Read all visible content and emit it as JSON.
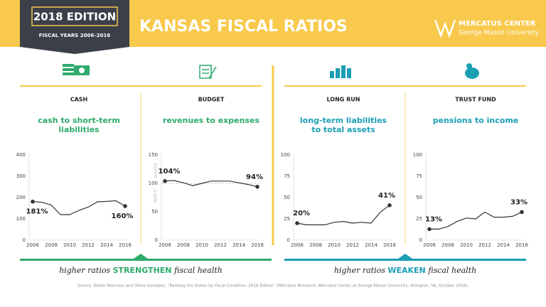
{
  "header": {
    "edition": "2018 EDITION",
    "years": "FISCAL YEARS 2006–2016",
    "title": "KANSAS FISCAL RATIOS",
    "brand": "MERCATUS CENTER",
    "brand_sub": "George Mason University"
  },
  "chart_data": [
    {
      "type": "line",
      "section": "CASH",
      "title": [
        "cash to short-term",
        "liabilities"
      ],
      "color": "#333333",
      "x": [
        2006,
        2007,
        2008,
        2009,
        2010,
        2011,
        2012,
        2013,
        2014,
        2015,
        2016
      ],
      "values": [
        181,
        178,
        165,
        120,
        120,
        140,
        155,
        180,
        182,
        185,
        160
      ],
      "value_labels": [
        "181%",
        null,
        null,
        null,
        null,
        null,
        null,
        null,
        null,
        null,
        "160%"
      ],
      "xlim": [
        2006,
        2016
      ],
      "xticks": [
        2006,
        2008,
        2010,
        2012,
        2014,
        2016
      ],
      "ylim": [
        0,
        400
      ],
      "yticks": [
        0,
        100,
        200,
        300,
        400
      ]
    },
    {
      "type": "line",
      "section": "BUDGET",
      "title": [
        "revenues to expenses"
      ],
      "color": "#333333",
      "x": [
        2006,
        2007,
        2008,
        2009,
        2010,
        2011,
        2012,
        2013,
        2014,
        2015,
        2016
      ],
      "values": [
        104,
        105,
        101,
        96,
        100,
        104,
        104,
        104,
        101,
        98,
        94
      ],
      "value_labels": [
        "104%",
        null,
        null,
        null,
        null,
        null,
        null,
        null,
        null,
        null,
        "94%"
      ],
      "reference_line": 100,
      "annotations": [
        "surplus",
        "deficit"
      ],
      "xlim": [
        2006,
        2016
      ],
      "xticks": [
        2006,
        2008,
        2010,
        2012,
        2014,
        2016
      ],
      "ylim": [
        0,
        150
      ],
      "yticks": [
        0,
        50,
        100,
        150
      ]
    },
    {
      "type": "line",
      "section": "LONG RUN",
      "title": [
        "long-term liabilities",
        "to total assets"
      ],
      "color": "#333333",
      "x": [
        2006,
        2007,
        2008,
        2009,
        2010,
        2011,
        2012,
        2013,
        2014,
        2015,
        2016
      ],
      "values": [
        20,
        18,
        18,
        18,
        21,
        22,
        20,
        21,
        20,
        33,
        41
      ],
      "value_labels": [
        "20%",
        null,
        null,
        null,
        null,
        null,
        null,
        null,
        null,
        null,
        "41%"
      ],
      "xlim": [
        2006,
        2016
      ],
      "xticks": [
        2006,
        2008,
        2010,
        2012,
        2014,
        2016
      ],
      "ylim": [
        0,
        100
      ],
      "yticks": [
        0,
        25,
        50,
        75,
        100
      ]
    },
    {
      "type": "line",
      "section": "TRUST FUND",
      "title": [
        "pensions to income"
      ],
      "color": "#333333",
      "x": [
        2006,
        2007,
        2008,
        2009,
        2010,
        2011,
        2012,
        2013,
        2014,
        2015,
        2016
      ],
      "values": [
        13,
        13,
        16,
        22,
        26,
        25,
        33,
        27,
        27,
        28,
        33
      ],
      "value_labels": [
        "13%",
        null,
        null,
        null,
        null,
        null,
        null,
        null,
        null,
        null,
        "33%"
      ],
      "xlim": [
        2006,
        2016
      ],
      "xticks": [
        2006,
        2008,
        2010,
        2012,
        2014,
        2016
      ],
      "ylim": [
        0,
        100
      ],
      "yticks": [
        0,
        25,
        50,
        75,
        100
      ]
    }
  ],
  "footer": {
    "left": {
      "before": "higher ratios",
      "emphasis": "STRENGTHEN",
      "after": "fiscal health"
    },
    "right": {
      "before": "higher ratios",
      "emphasis": "WEAKEN",
      "after": "fiscal health"
    },
    "source": "Source: Eileen Norcross and Olivia Gonzalez, “Ranking the States by Fiscal Condition, 2018 Edition” (Mercatus Research, Mercatus Center at George Mason University, Arlington, VA, October 2018)."
  }
}
